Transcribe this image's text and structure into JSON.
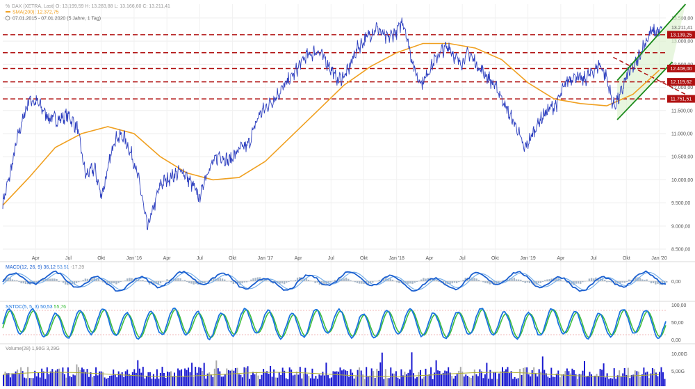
{
  "header": {
    "title": "DAX (XETRA, Last)",
    "ohlc": "O: 13.199,59  H: 13.283,88  L: 13.166,60  C: 13.211,41",
    "sma": "SMA(200): 12.372,75",
    "range": "07.01.2015 - 07.01.2020  (5 Jahre, 1 Tag)"
  },
  "panels": {
    "macd": {
      "label": "MACD(12, 26, 9)",
      "v1": "36,12",
      "v2": "53,51",
      "v3": "-17,39",
      "zero_label": "0,00"
    },
    "stoch": {
      "label": "SSTOC(5, 5, 3)",
      "v1": "50,53",
      "v2": "55,76",
      "ticks": [
        "100,00",
        "50,00",
        "0,00"
      ]
    },
    "volume": {
      "label": "Volume(28)",
      "v1": "1,90G",
      "v2": "3,29G",
      "ticks": [
        "10,00G",
        "5,00G"
      ]
    }
  },
  "colors": {
    "price": "#2d3fbf",
    "sma": "#f0a020",
    "support": "#b01010",
    "channel": "#1a8a1a",
    "macd": "#1a5fd0",
    "stoch": "#1a74e0",
    "volume": "#1a1ad0"
  },
  "chart_data": {
    "type": "line",
    "x_ticks": [
      "Apr",
      "Jul",
      "Okt",
      "Jan '16",
      "Apr",
      "Jul",
      "Okt",
      "Jan '17",
      "Apr",
      "Jul",
      "Okt",
      "Jan '18",
      "Apr",
      "Jul",
      "Okt",
      "Jan '19",
      "Apr",
      "Jul",
      "Okt",
      "Jan '20"
    ],
    "y_ticks": [
      "13.500,00",
      "13.000,00",
      "12.500,00",
      "12.000,00",
      "11.500,00",
      "11.000,00",
      "10.500,00",
      "10.000,00",
      "9.500,00",
      "9.000,00",
      "8.500,00"
    ],
    "ylim": [
      8350,
      13800
    ],
    "price": [
      [
        2015.0,
        9500
      ],
      [
        2015.05,
        10050
      ],
      [
        2015.12,
        11000
      ],
      [
        2015.2,
        11750
      ],
      [
        2015.27,
        11650
      ],
      [
        2015.35,
        11350
      ],
      [
        2015.42,
        11300
      ],
      [
        2015.5,
        11400
      ],
      [
        2015.57,
        11100
      ],
      [
        2015.63,
        10100
      ],
      [
        2015.7,
        10250
      ],
      [
        2015.75,
        9650
      ],
      [
        2015.8,
        10200
      ],
      [
        2015.85,
        10900
      ],
      [
        2015.92,
        10950
      ],
      [
        2016.0,
        10400
      ],
      [
        2016.05,
        9800
      ],
      [
        2016.1,
        8950
      ],
      [
        2016.15,
        9400
      ],
      [
        2016.2,
        9900
      ],
      [
        2016.3,
        10100
      ],
      [
        2016.37,
        10200
      ],
      [
        2016.45,
        9850
      ],
      [
        2016.5,
        9600
      ],
      [
        2016.55,
        10150
      ],
      [
        2016.65,
        10550
      ],
      [
        2016.72,
        10400
      ],
      [
        2016.8,
        10650
      ],
      [
        2016.87,
        10750
      ],
      [
        2016.95,
        11400
      ],
      [
        2017.0,
        11550
      ],
      [
        2017.08,
        11800
      ],
      [
        2017.15,
        12050
      ],
      [
        2017.22,
        12300
      ],
      [
        2017.3,
        12650
      ],
      [
        2017.4,
        12800
      ],
      [
        2017.48,
        12500
      ],
      [
        2017.55,
        12150
      ],
      [
        2017.62,
        12300
      ],
      [
        2017.7,
        12850
      ],
      [
        2017.78,
        13100
      ],
      [
        2017.85,
        13300
      ],
      [
        2017.92,
        13050
      ],
      [
        2018.0,
        13200
      ],
      [
        2018.05,
        13450
      ],
      [
        2018.1,
        12800
      ],
      [
        2018.15,
        12250
      ],
      [
        2018.2,
        12100
      ],
      [
        2018.25,
        12400
      ],
      [
        2018.33,
        12750
      ],
      [
        2018.4,
        12900
      ],
      [
        2018.45,
        12600
      ],
      [
        2018.5,
        12550
      ],
      [
        2018.55,
        12750
      ],
      [
        2018.62,
        12450
      ],
      [
        2018.7,
        12200
      ],
      [
        2018.78,
        11900
      ],
      [
        2018.85,
        11450
      ],
      [
        2018.92,
        11100
      ],
      [
        2018.97,
        10650
      ],
      [
        2019.02,
        10900
      ],
      [
        2019.08,
        11250
      ],
      [
        2019.15,
        11500
      ],
      [
        2019.22,
        11650
      ],
      [
        2019.3,
        12150
      ],
      [
        2019.35,
        12250
      ],
      [
        2019.42,
        12150
      ],
      [
        2019.48,
        12300
      ],
      [
        2019.55,
        12500
      ],
      [
        2019.6,
        12200
      ],
      [
        2019.65,
        11600
      ],
      [
        2019.7,
        11800
      ],
      [
        2019.76,
        12300
      ],
      [
        2019.82,
        12500
      ],
      [
        2019.88,
        12900
      ],
      [
        2019.94,
        13200
      ],
      [
        2020.0,
        13200
      ],
      [
        2020.02,
        13211
      ]
    ],
    "sma200": [
      [
        2015.0,
        9450
      ],
      [
        2015.2,
        10050
      ],
      [
        2015.4,
        10700
      ],
      [
        2015.6,
        11000
      ],
      [
        2015.8,
        11150
      ],
      [
        2016.0,
        11000
      ],
      [
        2016.2,
        10500
      ],
      [
        2016.4,
        10150
      ],
      [
        2016.6,
        10000
      ],
      [
        2016.8,
        10050
      ],
      [
        2017.0,
        10400
      ],
      [
        2017.2,
        10950
      ],
      [
        2017.4,
        11500
      ],
      [
        2017.6,
        12050
      ],
      [
        2017.8,
        12450
      ],
      [
        2018.0,
        12750
      ],
      [
        2018.2,
        12950
      ],
      [
        2018.4,
        12950
      ],
      [
        2018.6,
        12850
      ],
      [
        2018.8,
        12600
      ],
      [
        2019.0,
        12100
      ],
      [
        2019.2,
        11750
      ],
      [
        2019.4,
        11650
      ],
      [
        2019.6,
        11600
      ],
      [
        2019.8,
        11850
      ],
      [
        2020.0,
        12373
      ]
    ],
    "support_levels": [
      {
        "value": 13139.25,
        "label": "13.139,25"
      },
      {
        "value": 12750,
        "label": ""
      },
      {
        "value": 12408.0,
        "label": "12.408,00"
      },
      {
        "value": 12119.62,
        "label": "12.119,62"
      },
      {
        "value": 11751.51,
        "label": "11.751,51"
      }
    ],
    "last_value_label": "13.211,41",
    "downtrend_line": [
      [
        2019.65,
        12650
      ],
      [
        2020.2,
        11850
      ]
    ],
    "channel": {
      "upper": [
        [
          2019.68,
          12150
        ],
        [
          2020.2,
          13800
        ]
      ],
      "lower": [
        [
          2019.68,
          11300
        ],
        [
          2020.1,
          12550
        ]
      ]
    }
  }
}
